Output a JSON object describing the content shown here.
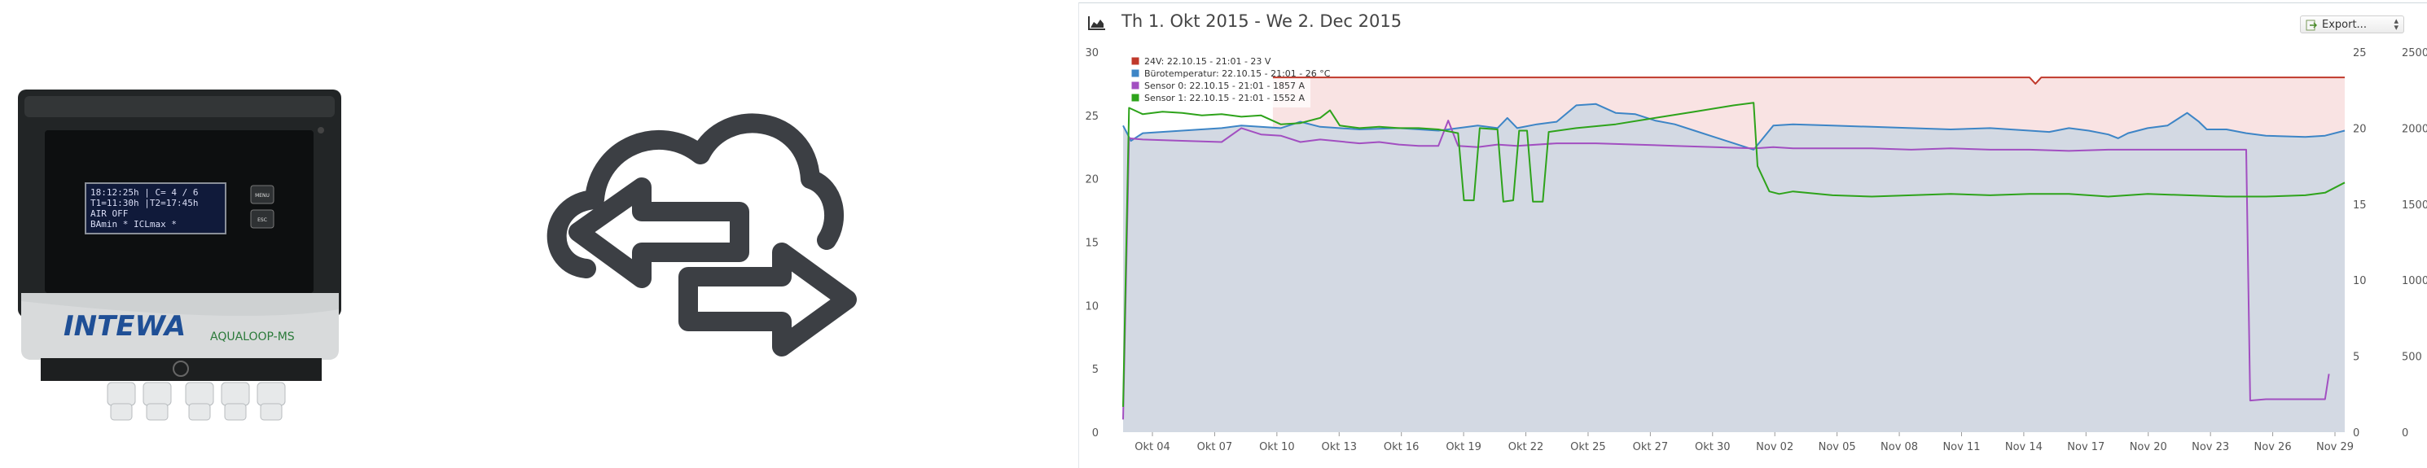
{
  "device": {
    "lcd_lines": [
      "18:12:25h | C= 4 / 6",
      "T1=11:30h |T2=17:45h",
      "AIR OFF",
      "BAmin *    ICLmax *"
    ],
    "brand": "INTEWA",
    "model": "AQUALOOP-MS",
    "button_labels": [
      "MENU",
      "ESC"
    ]
  },
  "sync_graphic": {
    "icon": "cloud-sync-arrows-icon"
  },
  "panel": {
    "title": "Th 1. Okt 2015 - We 2. Dec 2015",
    "export_label": "Export...",
    "chart_icon": "area-chart-icon",
    "export_icon": "export-file-icon"
  },
  "chart_data": {
    "type": "line",
    "title": "Th 1. Okt 2015 - We 2. Dec 2015",
    "x_tick_labels": [
      "Okt 04",
      "Okt 07",
      "Okt 10",
      "Okt 13",
      "Okt 16",
      "Okt 19",
      "Okt 22",
      "Okt 25",
      "Okt 27",
      "Okt 30",
      "Nov 02",
      "Nov 05",
      "Nov 08",
      "Nov 11",
      "Nov 14",
      "Nov 17",
      "Nov 20",
      "Nov 23",
      "Nov 26",
      "Nov 29"
    ],
    "x_range_days": [
      0,
      62
    ],
    "left_axis": {
      "ticks": [
        0,
        5,
        10,
        15,
        20,
        25,
        30
      ],
      "ylim": [
        0,
        30
      ]
    },
    "right_axis_1": {
      "ticks": [
        0,
        5,
        10,
        15,
        20,
        25
      ],
      "ylim": [
        0,
        25
      ]
    },
    "right_axis_2": {
      "ticks": [
        0,
        500,
        1000,
        1500,
        2000,
        2500
      ],
      "ylim": [
        0,
        2500
      ]
    },
    "grid": false,
    "legend_position": "top-left",
    "series": [
      {
        "name": "24V: 22.10.15 - 21:01 - 23 V",
        "color": "#c0392b",
        "axis": "left",
        "points": [
          [
            7.6,
            28
          ],
          [
            46,
            28
          ],
          [
            46.3,
            27.5
          ],
          [
            46.6,
            28
          ],
          [
            62,
            28
          ]
        ]
      },
      {
        "name": "Bürotemperatur: 22.10.15 - 21:01 - 26 °C",
        "color": "#3d85c6",
        "axis": "left",
        "points": [
          [
            0,
            24.2
          ],
          [
            0.4,
            23
          ],
          [
            1,
            23.6
          ],
          [
            3,
            23.8
          ],
          [
            5,
            24
          ],
          [
            6,
            24.2
          ],
          [
            8,
            24
          ],
          [
            9,
            24.5
          ],
          [
            10,
            24.1
          ],
          [
            12,
            23.9
          ],
          [
            14,
            24
          ],
          [
            16,
            23.8
          ],
          [
            18,
            24.2
          ],
          [
            19,
            24
          ],
          [
            19.5,
            24.8
          ],
          [
            20,
            24
          ],
          [
            21,
            24.3
          ],
          [
            22,
            24.5
          ],
          [
            23,
            25.8
          ],
          [
            24,
            25.9
          ],
          [
            25,
            25.2
          ],
          [
            26,
            25.1
          ],
          [
            27,
            24.6
          ],
          [
            28,
            24.3
          ],
          [
            29,
            23.8
          ],
          [
            30,
            23.3
          ],
          [
            31,
            22.8
          ],
          [
            32,
            22.3
          ],
          [
            33,
            24.2
          ],
          [
            34,
            24.3
          ],
          [
            36,
            24.2
          ],
          [
            38,
            24.1
          ],
          [
            40,
            24
          ],
          [
            42,
            23.9
          ],
          [
            44,
            24
          ],
          [
            46,
            23.8
          ],
          [
            47,
            23.7
          ],
          [
            48,
            24
          ],
          [
            49,
            23.8
          ],
          [
            50,
            23.5
          ],
          [
            50.5,
            23.2
          ],
          [
            51,
            23.6
          ],
          [
            52,
            24
          ],
          [
            53,
            24.2
          ],
          [
            54,
            25.2
          ],
          [
            54.6,
            24.5
          ],
          [
            55,
            23.9
          ],
          [
            56,
            23.9
          ],
          [
            57,
            23.6
          ],
          [
            58,
            23.4
          ],
          [
            60,
            23.3
          ],
          [
            61,
            23.4
          ],
          [
            62,
            23.8
          ]
        ]
      },
      {
        "name": "Sensor 0: 22.10.15 - 21:01 - 1857 A",
        "color": "#a24fc1",
        "axis": "left",
        "points": [
          [
            0,
            1
          ],
          [
            0.3,
            23.2
          ],
          [
            1,
            23.1
          ],
          [
            3,
            23
          ],
          [
            5,
            22.9
          ],
          [
            6,
            24
          ],
          [
            7,
            23.5
          ],
          [
            8,
            23.4
          ],
          [
            9,
            22.9
          ],
          [
            10,
            23.1
          ],
          [
            12,
            22.8
          ],
          [
            13,
            22.9
          ],
          [
            14,
            22.7
          ],
          [
            15,
            22.6
          ],
          [
            16,
            22.6
          ],
          [
            16.5,
            24.6
          ],
          [
            17,
            22.6
          ],
          [
            18,
            22.5
          ],
          [
            19,
            22.7
          ],
          [
            20,
            22.6
          ],
          [
            22,
            22.8
          ],
          [
            24,
            22.8
          ],
          [
            26,
            22.7
          ],
          [
            28,
            22.6
          ],
          [
            30,
            22.5
          ],
          [
            32,
            22.4
          ],
          [
            33,
            22.5
          ],
          [
            34,
            22.4
          ],
          [
            36,
            22.4
          ],
          [
            38,
            22.4
          ],
          [
            40,
            22.3
          ],
          [
            42,
            22.4
          ],
          [
            44,
            22.3
          ],
          [
            46,
            22.3
          ],
          [
            48,
            22.2
          ],
          [
            50,
            22.3
          ],
          [
            52,
            22.3
          ],
          [
            54,
            22.3
          ],
          [
            56,
            22.3
          ],
          [
            57,
            22.3
          ],
          [
            57.2,
            2.5
          ],
          [
            58,
            2.6
          ],
          [
            60,
            2.6
          ],
          [
            61,
            2.6
          ],
          [
            61.2,
            4.6
          ]
        ]
      },
      {
        "name": "Sensor 1: 22.10.15 - 21:01 - 1552 A",
        "color": "#2ea31b",
        "axis": "left",
        "points": [
          [
            0,
            2
          ],
          [
            0.3,
            25.6
          ],
          [
            1,
            25.1
          ],
          [
            2,
            25.3
          ],
          [
            3,
            25.2
          ],
          [
            4,
            25
          ],
          [
            5,
            25.1
          ],
          [
            6,
            24.9
          ],
          [
            7,
            25
          ],
          [
            8,
            24.3
          ],
          [
            9,
            24.4
          ],
          [
            10,
            24.8
          ],
          [
            10.5,
            25.4
          ],
          [
            11,
            24.2
          ],
          [
            12,
            24
          ],
          [
            13,
            24.1
          ],
          [
            14,
            24
          ],
          [
            15,
            24
          ],
          [
            16,
            23.9
          ],
          [
            17,
            23.6
          ],
          [
            17.3,
            18.3
          ],
          [
            17.8,
            18.3
          ],
          [
            18.1,
            24
          ],
          [
            19,
            23.9
          ],
          [
            19.3,
            18.2
          ],
          [
            19.8,
            18.3
          ],
          [
            20.1,
            23.8
          ],
          [
            20.5,
            23.8
          ],
          [
            20.8,
            18.2
          ],
          [
            21.3,
            18.2
          ],
          [
            21.6,
            23.7
          ],
          [
            23,
            24
          ],
          [
            25,
            24.3
          ],
          [
            27,
            24.8
          ],
          [
            29,
            25.3
          ],
          [
            31,
            25.8
          ],
          [
            32,
            26
          ],
          [
            32.2,
            21
          ],
          [
            32.8,
            19
          ],
          [
            33.3,
            18.8
          ],
          [
            34,
            19
          ],
          [
            36,
            18.7
          ],
          [
            38,
            18.6
          ],
          [
            40,
            18.7
          ],
          [
            42,
            18.8
          ],
          [
            44,
            18.7
          ],
          [
            46,
            18.8
          ],
          [
            48,
            18.8
          ],
          [
            50,
            18.6
          ],
          [
            52,
            18.8
          ],
          [
            54,
            18.7
          ],
          [
            56,
            18.6
          ],
          [
            58,
            18.6
          ],
          [
            60,
            18.7
          ],
          [
            61,
            18.9
          ],
          [
            62,
            19.7
          ]
        ]
      }
    ]
  }
}
